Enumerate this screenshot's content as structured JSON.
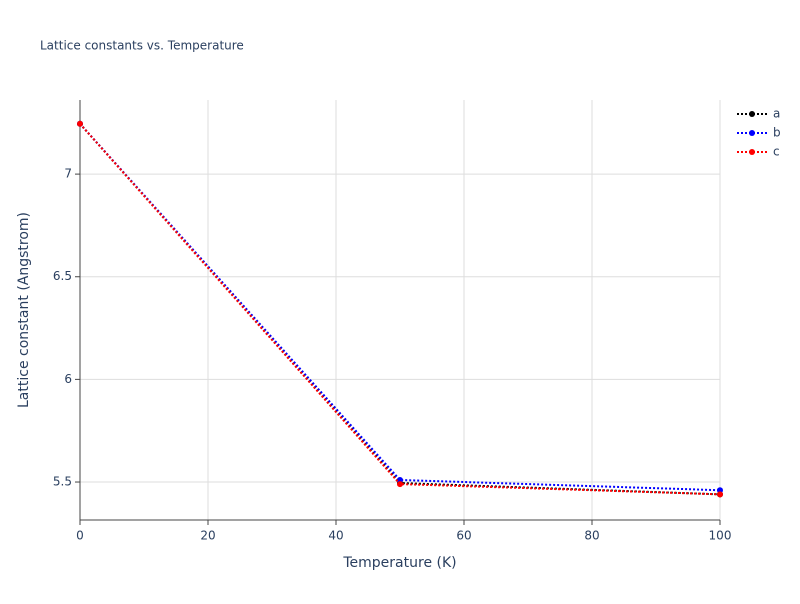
{
  "chart_data": {
    "type": "line",
    "title": "Lattice constants vs. Temperature",
    "x_label": "Temperature (K)",
    "y_label": "Lattice constant (Angstrom)",
    "x": [
      0,
      50,
      100
    ],
    "series": [
      {
        "name": "a",
        "color": "#000000",
        "values": [
          7.245,
          5.495,
          5.44
        ]
      },
      {
        "name": "b",
        "color": "#0000ff",
        "values": [
          7.245,
          5.51,
          5.46
        ]
      },
      {
        "name": "c",
        "color": "#ff0000",
        "values": [
          7.245,
          5.49,
          5.44
        ]
      }
    ],
    "xlim": [
      0,
      100
    ],
    "xticks": [
      0,
      20,
      40,
      60,
      80,
      100
    ],
    "ylim": [
      5.315,
      7.361
    ],
    "yticks": [
      5.5,
      6,
      6.5,
      7
    ],
    "grid": true,
    "legend": "right"
  }
}
